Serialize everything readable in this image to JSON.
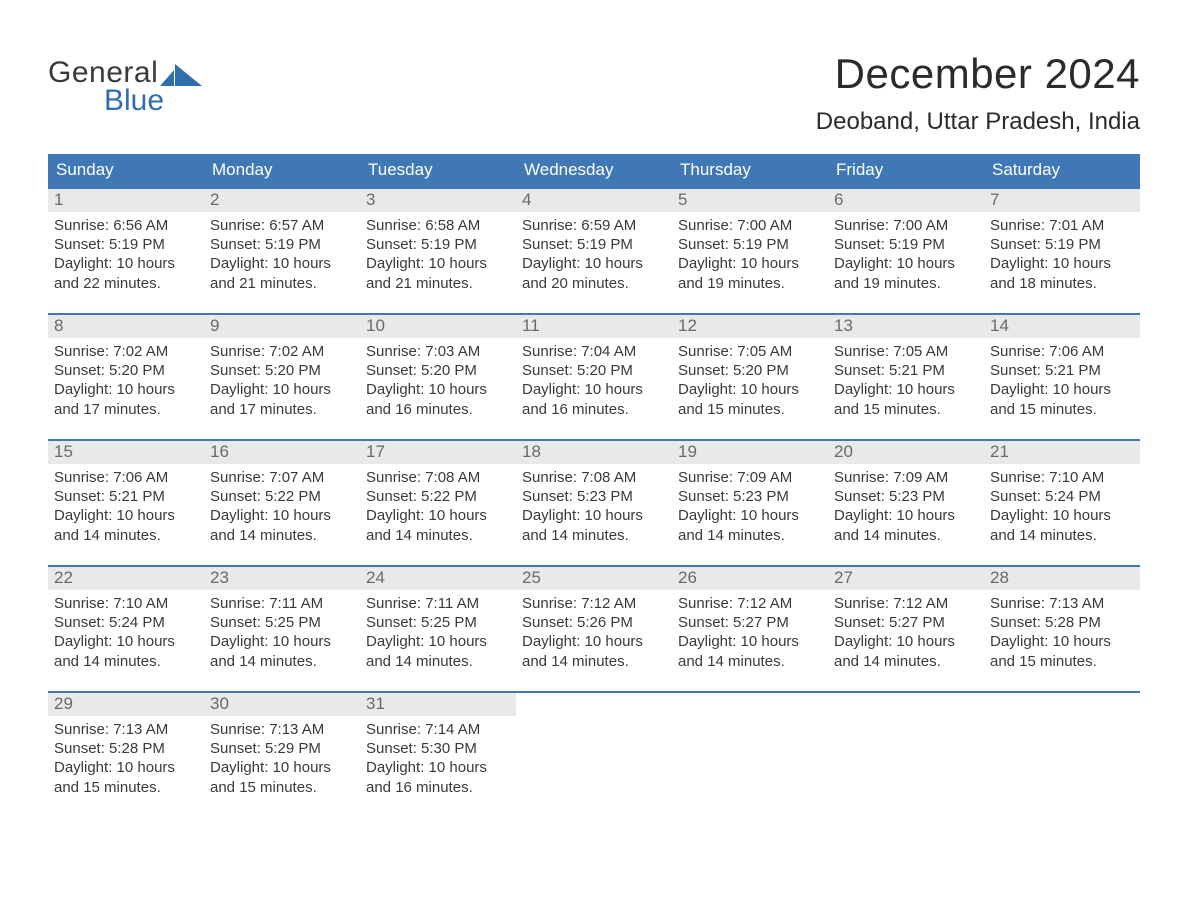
{
  "logo": {
    "text_top": "General",
    "text_bottom": "Blue",
    "accent_color": "#2f6fb0"
  },
  "header": {
    "month_title": "December 2024",
    "location": "Deoband, Uttar Pradesh, India"
  },
  "colors": {
    "header_bar": "#3f78b5",
    "week_border": "#3f78b5",
    "daynum_bg": "#e9e9e9",
    "daynum_fg": "#6a6a6a",
    "text": "#3a3a3a",
    "background": "#ffffff"
  },
  "days_of_week": [
    "Sunday",
    "Monday",
    "Tuesday",
    "Wednesday",
    "Thursday",
    "Friday",
    "Saturday"
  ],
  "labels": {
    "sunrise": "Sunrise:",
    "sunset": "Sunset:",
    "daylight_prefix": "Daylight:"
  },
  "weeks": [
    [
      {
        "n": "1",
        "sunrise": "6:56 AM",
        "sunset": "5:19 PM",
        "daylight": "10 hours and 22 minutes."
      },
      {
        "n": "2",
        "sunrise": "6:57 AM",
        "sunset": "5:19 PM",
        "daylight": "10 hours and 21 minutes."
      },
      {
        "n": "3",
        "sunrise": "6:58 AM",
        "sunset": "5:19 PM",
        "daylight": "10 hours and 21 minutes."
      },
      {
        "n": "4",
        "sunrise": "6:59 AM",
        "sunset": "5:19 PM",
        "daylight": "10 hours and 20 minutes."
      },
      {
        "n": "5",
        "sunrise": "7:00 AM",
        "sunset": "5:19 PM",
        "daylight": "10 hours and 19 minutes."
      },
      {
        "n": "6",
        "sunrise": "7:00 AM",
        "sunset": "5:19 PM",
        "daylight": "10 hours and 19 minutes."
      },
      {
        "n": "7",
        "sunrise": "7:01 AM",
        "sunset": "5:19 PM",
        "daylight": "10 hours and 18 minutes."
      }
    ],
    [
      {
        "n": "8",
        "sunrise": "7:02 AM",
        "sunset": "5:20 PM",
        "daylight": "10 hours and 17 minutes."
      },
      {
        "n": "9",
        "sunrise": "7:02 AM",
        "sunset": "5:20 PM",
        "daylight": "10 hours and 17 minutes."
      },
      {
        "n": "10",
        "sunrise": "7:03 AM",
        "sunset": "5:20 PM",
        "daylight": "10 hours and 16 minutes."
      },
      {
        "n": "11",
        "sunrise": "7:04 AM",
        "sunset": "5:20 PM",
        "daylight": "10 hours and 16 minutes."
      },
      {
        "n": "12",
        "sunrise": "7:05 AM",
        "sunset": "5:20 PM",
        "daylight": "10 hours and 15 minutes."
      },
      {
        "n": "13",
        "sunrise": "7:05 AM",
        "sunset": "5:21 PM",
        "daylight": "10 hours and 15 minutes."
      },
      {
        "n": "14",
        "sunrise": "7:06 AM",
        "sunset": "5:21 PM",
        "daylight": "10 hours and 15 minutes."
      }
    ],
    [
      {
        "n": "15",
        "sunrise": "7:06 AM",
        "sunset": "5:21 PM",
        "daylight": "10 hours and 14 minutes."
      },
      {
        "n": "16",
        "sunrise": "7:07 AM",
        "sunset": "5:22 PM",
        "daylight": "10 hours and 14 minutes."
      },
      {
        "n": "17",
        "sunrise": "7:08 AM",
        "sunset": "5:22 PM",
        "daylight": "10 hours and 14 minutes."
      },
      {
        "n": "18",
        "sunrise": "7:08 AM",
        "sunset": "5:23 PM",
        "daylight": "10 hours and 14 minutes."
      },
      {
        "n": "19",
        "sunrise": "7:09 AM",
        "sunset": "5:23 PM",
        "daylight": "10 hours and 14 minutes."
      },
      {
        "n": "20",
        "sunrise": "7:09 AM",
        "sunset": "5:23 PM",
        "daylight": "10 hours and 14 minutes."
      },
      {
        "n": "21",
        "sunrise": "7:10 AM",
        "sunset": "5:24 PM",
        "daylight": "10 hours and 14 minutes."
      }
    ],
    [
      {
        "n": "22",
        "sunrise": "7:10 AM",
        "sunset": "5:24 PM",
        "daylight": "10 hours and 14 minutes."
      },
      {
        "n": "23",
        "sunrise": "7:11 AM",
        "sunset": "5:25 PM",
        "daylight": "10 hours and 14 minutes."
      },
      {
        "n": "24",
        "sunrise": "7:11 AM",
        "sunset": "5:25 PM",
        "daylight": "10 hours and 14 minutes."
      },
      {
        "n": "25",
        "sunrise": "7:12 AM",
        "sunset": "5:26 PM",
        "daylight": "10 hours and 14 minutes."
      },
      {
        "n": "26",
        "sunrise": "7:12 AM",
        "sunset": "5:27 PM",
        "daylight": "10 hours and 14 minutes."
      },
      {
        "n": "27",
        "sunrise": "7:12 AM",
        "sunset": "5:27 PM",
        "daylight": "10 hours and 14 minutes."
      },
      {
        "n": "28",
        "sunrise": "7:13 AM",
        "sunset": "5:28 PM",
        "daylight": "10 hours and 15 minutes."
      }
    ],
    [
      {
        "n": "29",
        "sunrise": "7:13 AM",
        "sunset": "5:28 PM",
        "daylight": "10 hours and 15 minutes."
      },
      {
        "n": "30",
        "sunrise": "7:13 AM",
        "sunset": "5:29 PM",
        "daylight": "10 hours and 15 minutes."
      },
      {
        "n": "31",
        "sunrise": "7:14 AM",
        "sunset": "5:30 PM",
        "daylight": "10 hours and 16 minutes."
      },
      null,
      null,
      null,
      null
    ]
  ]
}
